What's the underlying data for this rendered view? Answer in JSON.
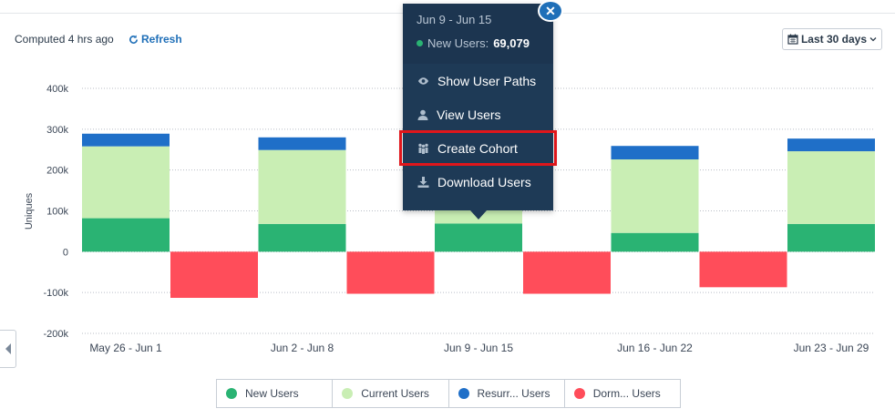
{
  "header": {
    "computed_text": "Computed 4 hrs ago",
    "refresh_label": "Refresh",
    "date_range_label": "Last 30 days"
  },
  "tooltip": {
    "date_range": "Jun 9 - Jun 15",
    "metric_label": "New Users:",
    "metric_value": "69,079",
    "menu": [
      {
        "label": "Show User Paths",
        "icon": "eye-icon"
      },
      {
        "label": "View Users",
        "icon": "user-icon"
      },
      {
        "label": "Create Cohort",
        "icon": "people-icon"
      },
      {
        "label": "Download Users",
        "icon": "download-icon"
      }
    ]
  },
  "legend": [
    {
      "label": "New Users",
      "color": "#2ab373"
    },
    {
      "label": "Current Users",
      "color": "#c9eeb4"
    },
    {
      "label": "Resurr... Users",
      "color": "#1f6fc8"
    },
    {
      "label": "Dorm... Users",
      "color": "#ff4d5a"
    }
  ],
  "chart_data": {
    "type": "bar",
    "ylabel": "Uniques",
    "ylim": [
      -200000,
      400000
    ],
    "yticks": [
      400000,
      300000,
      200000,
      100000,
      0,
      -100000,
      -200000
    ],
    "ytick_labels": [
      "400k",
      "300k",
      "200k",
      "100k",
      "0",
      "-100k",
      "-200k"
    ],
    "categories": [
      "May 26 - Jun 1",
      "Jun 2 - Jun 8",
      "Jun 9 - Jun 15",
      "Jun 16 - Jun 22",
      "Jun 23 - Jun 29"
    ],
    "series": [
      {
        "name": "New Users",
        "color": "#2ab373",
        "values": [
          82000,
          68000,
          69079,
          46000,
          68000
        ]
      },
      {
        "name": "Current Users",
        "color": "#c9eeb4",
        "values": [
          176000,
          181000,
          70000,
          180000,
          178000
        ]
      },
      {
        "name": "Resurr... Users",
        "color": "#1f6fc8",
        "values": [
          31000,
          31000,
          0,
          33000,
          31000
        ]
      },
      {
        "name": "Dorm... Users",
        "color": "#ff4d5a",
        "values": [
          -113000,
          -103000,
          -103000,
          -87000,
          0
        ]
      }
    ],
    "grid": true,
    "legend_position": "bottom"
  }
}
